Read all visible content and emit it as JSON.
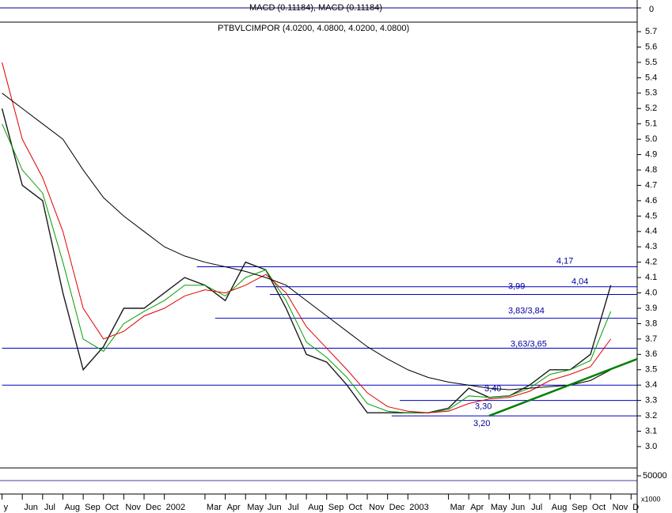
{
  "chart_data": {
    "type": "line",
    "top_panel_label": "MACD (0.11184), MACD (0.11184)",
    "top_panel_ticks": [
      0
    ],
    "title": "PTBVLCIMPOR (4.0200, 4.0800, 4.0200, 4.0800)",
    "x": [
      0,
      1,
      2,
      3,
      4,
      5,
      6,
      7,
      8,
      9,
      10,
      11,
      12,
      13,
      14,
      15,
      16,
      17,
      18,
      19,
      20,
      21,
      22,
      23,
      24,
      25,
      26,
      27,
      28,
      29,
      30
    ],
    "series": [
      {
        "color": "#1a1a1a",
        "values": [
          5.2,
          4.7,
          4.6,
          4.0,
          3.5,
          3.65,
          3.9,
          3.9,
          4.0,
          4.1,
          4.05,
          3.95,
          4.2,
          4.15,
          3.9,
          3.6,
          3.55,
          3.4,
          3.22,
          3.22,
          3.22,
          3.22,
          3.25,
          3.38,
          3.32,
          3.33,
          3.4,
          3.5,
          3.5,
          3.6,
          4.05
        ]
      },
      {
        "color": "#00a000",
        "values": [
          5.1,
          4.8,
          4.65,
          4.2,
          3.7,
          3.62,
          3.8,
          3.88,
          3.95,
          4.05,
          4.05,
          3.98,
          4.1,
          4.15,
          3.95,
          3.68,
          3.58,
          3.45,
          3.28,
          3.23,
          3.22,
          3.22,
          3.24,
          3.33,
          3.32,
          3.33,
          3.38,
          3.47,
          3.5,
          3.56,
          3.88
        ]
      },
      {
        "color": "#e00000",
        "values": [
          5.5,
          5.0,
          4.75,
          4.4,
          3.9,
          3.7,
          3.75,
          3.85,
          3.9,
          3.98,
          4.02,
          4.0,
          4.05,
          4.12,
          4.0,
          3.78,
          3.64,
          3.5,
          3.35,
          3.26,
          3.23,
          3.22,
          3.23,
          3.28,
          3.31,
          3.32,
          3.36,
          3.43,
          3.47,
          3.52,
          3.7
        ]
      },
      {
        "color": "#000000",
        "values": [
          5.3,
          5.2,
          5.1,
          5.0,
          4.8,
          4.62,
          4.5,
          4.4,
          4.3,
          4.24,
          4.2,
          4.17,
          4.14,
          4.1,
          4.05,
          3.95,
          3.85,
          3.75,
          3.65,
          3.57,
          3.5,
          3.45,
          3.42,
          3.4,
          3.38,
          3.37,
          3.38,
          3.39,
          3.4,
          3.43,
          3.5
        ]
      }
    ],
    "levels": [
      {
        "value": 4.17,
        "label": "4,17",
        "x_start": 9.6
      },
      {
        "value": 4.04,
        "label": "4,04",
        "x_start": 12.5
      },
      {
        "value": 3.99,
        "label": "3,99",
        "x_start": 13.2
      },
      {
        "value": 3.835,
        "label": "3,83/3,84",
        "x_start": 10.5
      },
      {
        "value": 3.64,
        "label": "3,63/3,65",
        "x_start": 0
      },
      {
        "value": 3.4,
        "label": "3,40",
        "x_start": 0
      },
      {
        "value": 3.3,
        "label": "3,30",
        "x_start": 19.6
      },
      {
        "value": 3.2,
        "label": "3,20",
        "x_start": 19.2
      }
    ],
    "trendline": {
      "color": "#008000",
      "x": [
        24,
        31.3
      ],
      "values": [
        3.2,
        3.57
      ]
    },
    "xlim": [
      -0.1,
      31.3
    ],
    "ylim": [
      2.861,
      5.762
    ],
    "yticks": [
      {
        "value": 3.0,
        "label": "3.0"
      },
      3.1,
      3.2,
      3.3,
      3.4,
      3.5,
      3.6,
      3.7,
      3.8,
      3.9,
      {
        "value": 4.0,
        "label": "4.0"
      },
      4.1,
      4.2,
      4.3,
      4.4,
      4.5,
      4.6,
      4.7,
      4.8,
      4.9,
      {
        "value": 5.0,
        "label": "5.0"
      },
      5.1,
      5.2,
      5.3,
      5.4,
      5.5,
      5.6,
      5.7
    ],
    "xticks": [
      {
        "value": 0,
        "label": "y"
      },
      {
        "value": 1,
        "label": "Jun"
      },
      {
        "value": 2,
        "label": "Jul"
      },
      {
        "value": 3,
        "label": "Aug"
      },
      {
        "value": 4,
        "label": "Sep"
      },
      {
        "value": 5,
        "label": "Oct"
      },
      {
        "value": 6,
        "label": "Nov"
      },
      {
        "value": 7,
        "label": "Dec"
      },
      {
        "value": 8,
        "label": "2002"
      },
      {
        "value": 10,
        "label": "Mar"
      },
      {
        "value": 11,
        "label": "Apr"
      },
      {
        "value": 12,
        "label": "May"
      },
      {
        "value": 13,
        "label": "Jun"
      },
      {
        "value": 14,
        "label": "Jul"
      },
      {
        "value": 15,
        "label": "Aug"
      },
      {
        "value": 16,
        "label": "Sep"
      },
      {
        "value": 17,
        "label": "Oct"
      },
      {
        "value": 18,
        "label": "Nov"
      },
      {
        "value": 19,
        "label": "Dec"
      },
      {
        "value": 20,
        "label": "2003"
      },
      {
        "value": 22,
        "label": "Mar"
      },
      {
        "value": 23,
        "label": "Apr"
      },
      {
        "value": 24,
        "label": "May"
      },
      {
        "value": 25,
        "label": "Jun"
      },
      {
        "value": 26,
        "label": "Jul"
      },
      {
        "value": 27,
        "label": "Aug"
      },
      {
        "value": 28,
        "label": "Sep"
      },
      {
        "value": 29,
        "label": "Oct"
      },
      {
        "value": 30,
        "label": "Nov"
      },
      {
        "value": 31,
        "label": "D"
      }
    ],
    "bottom_panel_ticks": [
      50000
    ],
    "bottom_panel_unit": "x1000"
  }
}
